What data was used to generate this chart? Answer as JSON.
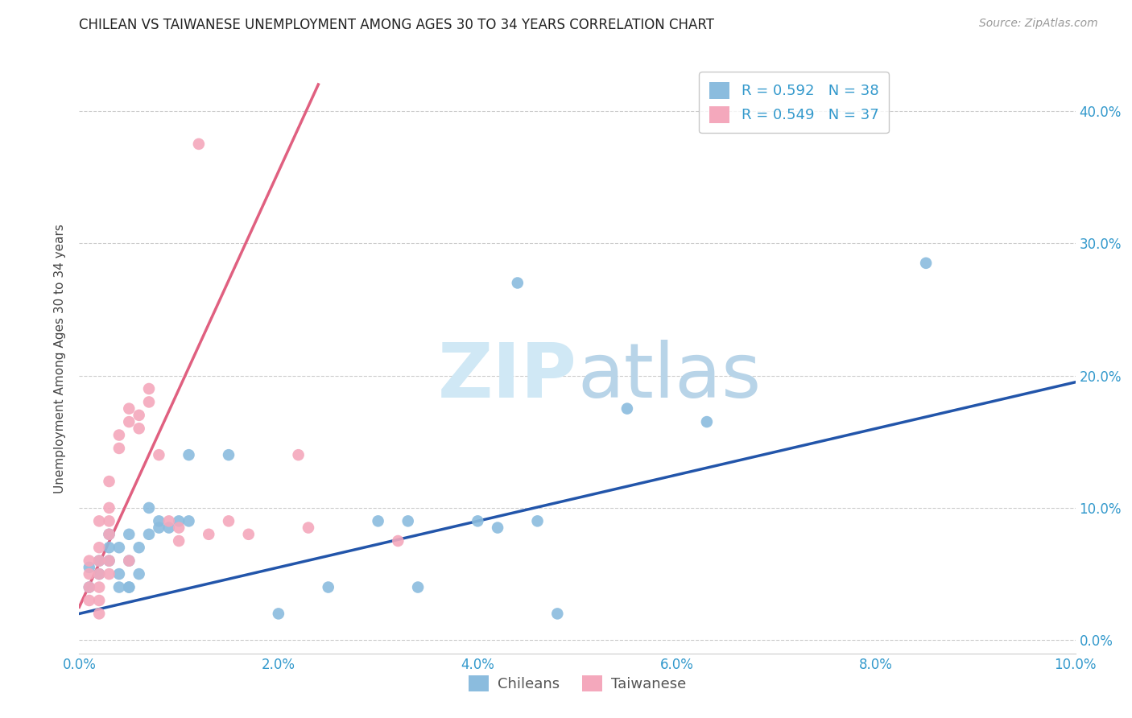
{
  "title": "CHILEAN VS TAIWANESE UNEMPLOYMENT AMONG AGES 30 TO 34 YEARS CORRELATION CHART",
  "source": "Source: ZipAtlas.com",
  "ylabel": "Unemployment Among Ages 30 to 34 years",
  "xlim": [
    0.0,
    0.1
  ],
  "ylim": [
    -0.01,
    0.435
  ],
  "xticks": [
    0.0,
    0.02,
    0.04,
    0.06,
    0.08,
    0.1
  ],
  "yticks": [
    0.0,
    0.1,
    0.2,
    0.3,
    0.4
  ],
  "right_ytick_labels": [
    "0.0%",
    "10.0%",
    "20.0%",
    "30.0%",
    "40.0%"
  ],
  "bottom_xtick_labels": [
    "0.0%",
    "2.0%",
    "4.0%",
    "6.0%",
    "8.0%",
    "10.0%"
  ],
  "blue_color": "#8bbcde",
  "pink_color": "#f4a8bc",
  "blue_line_color": "#2255aa",
  "pink_line_color": "#e06080",
  "legend_R_blue": "0.592",
  "legend_N_blue": "38",
  "legend_R_pink": "0.549",
  "legend_N_pink": "37",
  "chileans_x": [
    0.001,
    0.001,
    0.002,
    0.002,
    0.003,
    0.003,
    0.003,
    0.004,
    0.004,
    0.004,
    0.005,
    0.005,
    0.005,
    0.005,
    0.006,
    0.006,
    0.007,
    0.007,
    0.008,
    0.008,
    0.009,
    0.01,
    0.011,
    0.011,
    0.015,
    0.02,
    0.025,
    0.03,
    0.033,
    0.034,
    0.04,
    0.042,
    0.044,
    0.046,
    0.048,
    0.055,
    0.063,
    0.085
  ],
  "chileans_y": [
    0.04,
    0.055,
    0.06,
    0.05,
    0.08,
    0.07,
    0.06,
    0.07,
    0.05,
    0.04,
    0.08,
    0.04,
    0.06,
    0.04,
    0.07,
    0.05,
    0.1,
    0.08,
    0.085,
    0.09,
    0.085,
    0.09,
    0.09,
    0.14,
    0.14,
    0.02,
    0.04,
    0.09,
    0.09,
    0.04,
    0.09,
    0.085,
    0.27,
    0.09,
    0.02,
    0.175,
    0.165,
    0.285
  ],
  "taiwanese_x": [
    0.001,
    0.001,
    0.001,
    0.001,
    0.002,
    0.002,
    0.002,
    0.002,
    0.002,
    0.002,
    0.002,
    0.003,
    0.003,
    0.003,
    0.003,
    0.003,
    0.003,
    0.004,
    0.004,
    0.005,
    0.005,
    0.005,
    0.006,
    0.006,
    0.007,
    0.007,
    0.008,
    0.009,
    0.01,
    0.01,
    0.012,
    0.013,
    0.015,
    0.017,
    0.022,
    0.023,
    0.032
  ],
  "taiwanese_y": [
    0.06,
    0.05,
    0.04,
    0.03,
    0.09,
    0.07,
    0.06,
    0.05,
    0.04,
    0.03,
    0.02,
    0.12,
    0.1,
    0.09,
    0.08,
    0.06,
    0.05,
    0.155,
    0.145,
    0.175,
    0.165,
    0.06,
    0.17,
    0.16,
    0.19,
    0.18,
    0.14,
    0.09,
    0.085,
    0.075,
    0.375,
    0.08,
    0.09,
    0.08,
    0.14,
    0.085,
    0.075
  ],
  "blue_trend_x": [
    0.0,
    0.1
  ],
  "blue_trend_y": [
    0.02,
    0.195
  ],
  "pink_trend_x": [
    0.0,
    0.024
  ],
  "pink_trend_y": [
    0.025,
    0.42
  ]
}
